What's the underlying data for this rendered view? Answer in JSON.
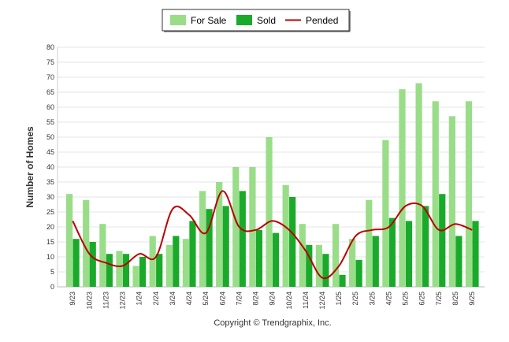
{
  "chart_data": {
    "type": "bar",
    "title": "",
    "xlabel": "",
    "ylabel": "Number of Homes",
    "ylim": [
      0,
      80
    ],
    "yticks": [
      0,
      5,
      10,
      15,
      20,
      25,
      30,
      35,
      40,
      45,
      50,
      55,
      60,
      65,
      70,
      75,
      80
    ],
    "grid": true,
    "legend_position": "top-center",
    "categories": [
      "9/23",
      "10/23",
      "11/23",
      "12/23",
      "1/24",
      "2/24",
      "3/24",
      "4/24",
      "5/24",
      "6/24",
      "7/24",
      "8/24",
      "9/24",
      "10/24",
      "11/24",
      "12/24",
      "1/25",
      "2/25",
      "3/25",
      "4/25",
      "5/25",
      "6/25",
      "7/25",
      "8/25",
      "9/25"
    ],
    "series": [
      {
        "name": "For Sale",
        "kind": "bar",
        "color": "#99dd88",
        "values": [
          31,
          29,
          21,
          12,
          7,
          17,
          14,
          16,
          32,
          35,
          40,
          40,
          50,
          34,
          21,
          14,
          21,
          16,
          29,
          49,
          66,
          68,
          62,
          57,
          62
        ]
      },
      {
        "name": "Sold",
        "kind": "bar",
        "color": "#1aaa2a",
        "values": [
          16,
          15,
          11,
          11,
          10,
          11,
          17,
          22,
          26,
          27,
          32,
          19,
          18,
          30,
          14,
          11,
          4,
          9,
          17,
          23,
          22,
          27,
          31,
          17,
          22
        ]
      },
      {
        "name": "Pended",
        "kind": "line",
        "color": "#bb0000",
        "values": [
          22,
          11,
          8,
          7,
          11,
          10,
          26,
          24,
          18,
          32,
          20,
          19,
          22,
          19,
          12,
          3,
          7,
          17,
          19,
          20,
          27,
          27,
          19,
          21,
          19
        ]
      }
    ],
    "footer": "Copyright © Trendgraphix, Inc."
  }
}
